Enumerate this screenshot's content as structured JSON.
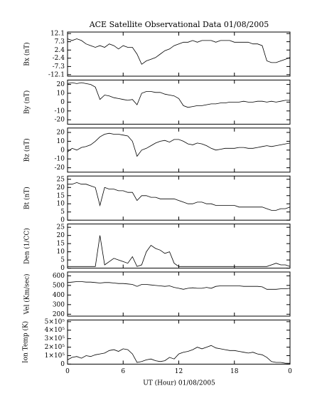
{
  "title": "ACE Satellite Observational Data  01/08/2005",
  "xlabel": "UT (Hour)  01/08/2005",
  "xlim": [
    0,
    24
  ],
  "xticks": [
    0,
    6,
    12,
    18,
    {
      "value": 24,
      "label": "0"
    }
  ],
  "x": [
    0,
    0.5,
    1,
    1.5,
    2,
    2.5,
    3,
    3.5,
    4,
    4.5,
    5,
    5.5,
    6,
    6.5,
    7,
    7.5,
    8,
    8.5,
    9,
    9.5,
    10,
    10.5,
    11,
    11.5,
    12,
    12.5,
    13,
    13.5,
    14,
    14.5,
    15,
    15.5,
    16,
    16.5,
    17,
    17.5,
    18,
    18.5,
    19,
    19.5,
    20,
    20.5,
    21,
    21.5,
    22,
    22.5,
    23,
    23.5,
    24
  ],
  "chart_data": [
    {
      "type": "line",
      "ylabel": "Bx (nT)",
      "color": "#000000",
      "ylim": [
        -13,
        13
      ],
      "yticks": [
        12.1,
        7.3,
        2.4,
        -2.4,
        -7.3,
        -12.1
      ],
      "values": [
        9,
        8,
        9,
        8,
        6,
        5,
        4,
        5,
        4,
        6,
        5,
        3,
        5,
        4,
        4,
        0,
        -6,
        -4,
        -3,
        -2,
        0,
        2,
        3,
        5,
        6,
        7,
        7,
        8,
        7,
        8,
        8,
        8,
        7,
        8,
        8,
        8,
        7,
        7,
        7,
        7,
        6,
        6,
        5,
        -4,
        -5,
        -5,
        -4,
        -3,
        -2
      ]
    },
    {
      "type": "line",
      "ylabel": "By (nT)",
      "color": "#000000",
      "ylim": [
        -25,
        25
      ],
      "yticks": [
        20,
        10,
        0,
        -10,
        -20
      ],
      "values": [
        21,
        22,
        21,
        22,
        21,
        20,
        17,
        3,
        8,
        7,
        5,
        4,
        3,
        2,
        3,
        -3,
        10,
        12,
        12,
        11,
        11,
        9,
        8,
        7,
        4,
        -4,
        -6,
        -5,
        -4,
        -4,
        -3,
        -2,
        -2,
        -1,
        -1,
        0,
        0,
        0,
        1,
        0,
        0,
        1,
        1,
        0,
        1,
        0,
        1,
        2,
        2
      ]
    },
    {
      "type": "line",
      "ylabel": "Bz (nT)",
      "color": "#000000",
      "ylim": [
        -25,
        25
      ],
      "yticks": [
        20,
        10,
        0,
        -10,
        -20
      ],
      "values": [
        -2,
        2,
        0,
        3,
        4,
        6,
        10,
        15,
        18,
        19,
        18,
        18,
        17,
        16,
        10,
        -7,
        0,
        2,
        5,
        8,
        10,
        11,
        9,
        12,
        12,
        10,
        7,
        6,
        8,
        7,
        5,
        2,
        0,
        1,
        2,
        2,
        2,
        3,
        3,
        2,
        2,
        3,
        4,
        5,
        4,
        5,
        6,
        7,
        8
      ]
    },
    {
      "type": "line",
      "ylabel": "Bt (nT)",
      "color": "#000000",
      "ylim": [
        0,
        27
      ],
      "yticks": [
        0,
        5,
        10,
        15,
        20,
        25
      ],
      "values": [
        22,
        22,
        23,
        22,
        22,
        21,
        20,
        9,
        20,
        19,
        19,
        18,
        18,
        17,
        17,
        12,
        15,
        15,
        14,
        14,
        13,
        13,
        13,
        13,
        12,
        11,
        10,
        10,
        11,
        11,
        10,
        10,
        9,
        9,
        9,
        9,
        9,
        8,
        8,
        8,
        8,
        8,
        8,
        7,
        6,
        6,
        7,
        7,
        8
      ]
    },
    {
      "type": "line",
      "ylabel": "Den (1/CC)",
      "color": "#000000",
      "ylim": [
        0,
        27
      ],
      "yticks": [
        0,
        5,
        10,
        15,
        20,
        25
      ],
      "values": [
        1,
        1,
        1,
        1,
        1,
        1,
        1,
        20,
        2,
        4,
        6,
        5,
        4,
        3,
        7,
        1,
        2,
        10,
        14,
        12,
        11,
        9,
        10,
        3,
        1,
        1,
        1,
        1,
        1,
        1,
        1,
        1,
        1,
        1,
        1,
        1,
        1,
        1,
        1,
        1,
        1,
        1,
        1,
        1,
        2,
        3,
        2,
        2,
        1
      ]
    },
    {
      "type": "line",
      "ylabel": "Vel (Km/sec)",
      "color": "#000000",
      "ylim": [
        180,
        640
      ],
      "yticks": [
        200,
        300,
        400,
        500,
        600
      ],
      "values": [
        530,
        535,
        540,
        540,
        535,
        535,
        530,
        525,
        530,
        530,
        525,
        520,
        520,
        515,
        510,
        490,
        510,
        510,
        505,
        500,
        495,
        490,
        495,
        480,
        470,
        460,
        470,
        475,
        470,
        470,
        480,
        470,
        490,
        495,
        495,
        495,
        495,
        495,
        490,
        490,
        490,
        490,
        485,
        460,
        460,
        460,
        465,
        465,
        470
      ]
    },
    {
      "type": "line",
      "ylabel": "Ion Temp (K)",
      "color": "#000000",
      "ylim": [
        0,
        520000
      ],
      "yticks": [
        0,
        {
          "value": 100000,
          "label": "1×10⁵"
        },
        {
          "value": 200000,
          "label": "2×10⁵"
        },
        {
          "value": 300000,
          "label": "3×10⁵"
        },
        {
          "value": 400000,
          "label": "4×10⁵"
        },
        {
          "value": 500000,
          "label": "5×10⁵"
        }
      ],
      "values": [
        50000,
        80000,
        90000,
        70000,
        100000,
        90000,
        110000,
        120000,
        130000,
        160000,
        170000,
        150000,
        180000,
        170000,
        120000,
        20000,
        30000,
        50000,
        60000,
        40000,
        30000,
        40000,
        80000,
        60000,
        120000,
        140000,
        150000,
        170000,
        200000,
        180000,
        200000,
        220000,
        190000,
        180000,
        170000,
        160000,
        160000,
        150000,
        140000,
        130000,
        140000,
        120000,
        110000,
        80000,
        30000,
        20000,
        20000,
        10000,
        10000
      ]
    }
  ]
}
